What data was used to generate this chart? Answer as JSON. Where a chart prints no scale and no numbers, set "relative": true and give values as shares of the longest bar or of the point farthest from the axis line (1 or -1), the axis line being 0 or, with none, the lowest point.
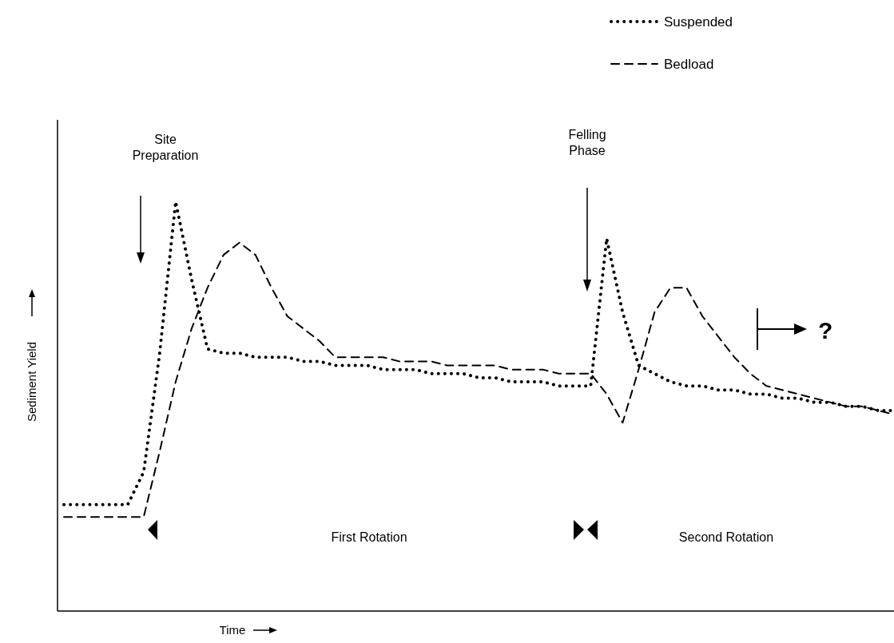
{
  "chart_data": {
    "type": "line",
    "relative": true,
    "xlabel": "Time",
    "ylabel": "Sediment Yield",
    "legend": "top right",
    "grid": false,
    "categories": [
      null,
      null,
      null,
      null,
      null,
      null,
      null,
      null,
      null,
      null,
      null,
      null,
      null,
      null,
      null,
      null,
      null,
      null,
      null,
      null,
      null,
      null,
      null,
      null,
      null,
      null,
      null,
      null,
      null,
      null,
      null,
      null,
      null,
      null,
      null,
      null,
      null,
      null,
      null,
      null,
      null,
      null,
      null,
      null,
      null,
      null,
      null,
      null,
      null,
      null,
      null,
      null,
      null
    ],
    "series": [
      {
        "name": "Suspended",
        "color": "#000000",
        "line_style": "dotted",
        "values": [
          0.26,
          0.26,
          0.26,
          0.26,
          0.26,
          0.34,
          0.63,
          1,
          0.81,
          0.64,
          0.63,
          0.63,
          0.62,
          0.62,
          0.62,
          0.61,
          0.61,
          0.6,
          0.6,
          0.6,
          0.59,
          0.59,
          0.59,
          0.58,
          0.58,
          0.58,
          0.57,
          0.57,
          0.56,
          0.56,
          0.56,
          0.55,
          0.55,
          0.55,
          0.91,
          0.73,
          0.6,
          0.58,
          0.56,
          0.55,
          0.55,
          0.54,
          0.54,
          0.53,
          0.53,
          0.52,
          0.52,
          0.51,
          0.51,
          0.5,
          0.5,
          0.49,
          0.49
        ]
      },
      {
        "name": "Bedload",
        "color": "#000000",
        "line_style": "dashed",
        "values": [
          0.23,
          0.23,
          0.23,
          0.23,
          0.23,
          0.23,
          0.39,
          0.56,
          0.69,
          0.79,
          0.87,
          0.9,
          0.87,
          0.79,
          0.72,
          0.69,
          0.66,
          0.62,
          0.62,
          0.62,
          0.62,
          0.61,
          0.61,
          0.61,
          0.6,
          0.6,
          0.6,
          0.6,
          0.59,
          0.59,
          0.59,
          0.58,
          0.58,
          0.58,
          0.53,
          0.46,
          0.59,
          0.73,
          0.79,
          0.79,
          0.72,
          0.67,
          0.62,
          0.58,
          0.55,
          0.54,
          0.53,
          0.52,
          0.51,
          0.5,
          0.5,
          0.49,
          0.48
        ]
      }
    ],
    "annotations": [
      "Site Preparation",
      "Felling Phase",
      "First Rotation",
      "Second Rotation",
      "?"
    ]
  }
}
